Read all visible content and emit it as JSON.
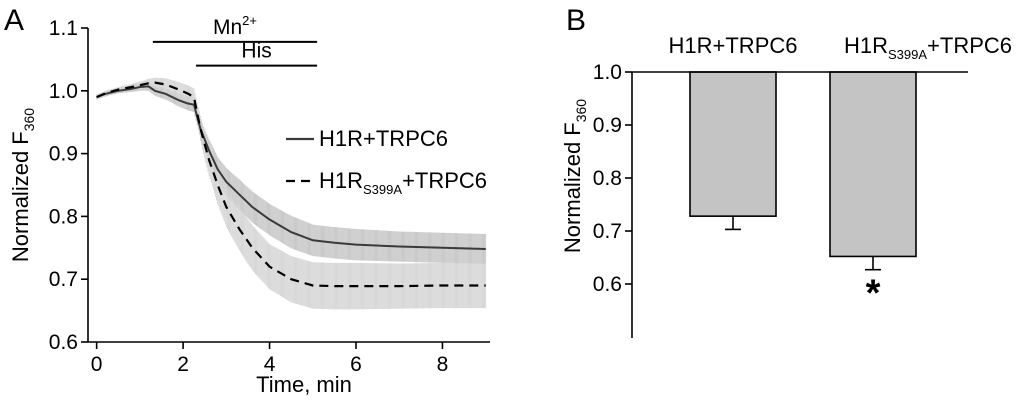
{
  "chart_data": [
    {
      "panel": "A",
      "type": "line",
      "xlabel": "Time, min",
      "ylabel": {
        "text": "Normalized F",
        "subscript": "360"
      },
      "xlim": [
        -0.2,
        9.1
      ],
      "ylim": [
        0.6,
        1.1
      ],
      "x_ticks": [
        0,
        2,
        4,
        6,
        8
      ],
      "y_ticks": [
        0.6,
        0.7,
        0.8,
        0.9,
        1.0,
        1.1
      ],
      "y_tick_labels": [
        "0.6",
        "0.7",
        "0.8",
        "0.9",
        "1.0",
        "1.1"
      ],
      "stimuli": [
        {
          "label": "Mn",
          "superscript": "2+",
          "x_start": 1.3,
          "x_end": 5.1,
          "y": 1.078
        },
        {
          "label": "His",
          "superscript": "",
          "x_start": 2.3,
          "x_end": 5.1,
          "y": 1.04
        }
      ],
      "series": [
        {
          "name": "H1R+TRPC6",
          "name_parts": {
            "main": "H1R",
            "sub": "",
            "rest": "+TRPC6"
          },
          "line_style": "solid",
          "color": "#3a3a3a",
          "x": [
            0,
            0.2,
            0.5,
            0.8,
            1.0,
            1.2,
            1.35,
            1.6,
            1.9,
            2.1,
            2.25,
            2.4,
            2.6,
            2.8,
            3.0,
            3.3,
            3.6,
            4.0,
            4.5,
            5.0,
            5.5,
            6.0,
            7.0,
            8.0,
            9.0
          ],
          "y": [
            0.99,
            0.995,
            1.0,
            1.003,
            1.006,
            1.007,
            1.0,
            0.995,
            0.985,
            0.98,
            0.978,
            0.94,
            0.905,
            0.875,
            0.855,
            0.835,
            0.815,
            0.795,
            0.775,
            0.762,
            0.758,
            0.755,
            0.752,
            0.75,
            0.748
          ],
          "err": [
            0.004,
            0.004,
            0.004,
            0.005,
            0.006,
            0.007,
            0.008,
            0.009,
            0.01,
            0.011,
            0.012,
            0.015,
            0.018,
            0.02,
            0.022,
            0.024,
            0.025,
            0.025,
            0.026,
            0.025,
            0.025,
            0.025,
            0.024,
            0.024,
            0.024
          ]
        },
        {
          "name": "H1RS399A+TRPC6",
          "name_parts": {
            "main": "H1R",
            "sub": "S399A",
            "rest": "+TRPC6"
          },
          "line_style": "dashed",
          "color": "#000000",
          "x": [
            0,
            0.2,
            0.5,
            0.8,
            1.0,
            1.2,
            1.35,
            1.6,
            1.9,
            2.1,
            2.25,
            2.4,
            2.6,
            2.8,
            3.0,
            3.3,
            3.6,
            4.0,
            4.5,
            5.0,
            5.5,
            6.0,
            7.0,
            8.0,
            9.0
          ],
          "y": [
            0.99,
            0.996,
            1.002,
            1.006,
            1.009,
            1.012,
            1.013,
            1.01,
            1.002,
            0.996,
            0.99,
            0.94,
            0.89,
            0.85,
            0.815,
            0.78,
            0.75,
            0.72,
            0.7,
            0.69,
            0.689,
            0.689,
            0.689,
            0.69,
            0.69
          ],
          "err": [
            0.004,
            0.004,
            0.004,
            0.005,
            0.006,
            0.007,
            0.008,
            0.01,
            0.012,
            0.013,
            0.014,
            0.02,
            0.026,
            0.03,
            0.032,
            0.034,
            0.036,
            0.036,
            0.037,
            0.037,
            0.037,
            0.037,
            0.036,
            0.036,
            0.036
          ]
        }
      ],
      "legend_placement": "right"
    },
    {
      "panel": "B",
      "type": "bar",
      "ylabel": {
        "text": "Normalized F",
        "subscript": "360"
      },
      "ylim": [
        0.5,
        1.0
      ],
      "y_ticks": [
        0.6,
        0.7,
        0.8,
        0.9,
        1.0
      ],
      "y_tick_labels": [
        "0.6",
        "0.7",
        "0.8",
        "0.9",
        "1.0"
      ],
      "baseline": 1.0,
      "categories": [
        "H1R+TRPC6",
        "H1RS399A+TRPC6"
      ],
      "category_parts": [
        {
          "main": "H1R",
          "sub": "",
          "rest": "+TRPC6"
        },
        {
          "main": "H1R",
          "sub": "S399A",
          "rest": "+TRPC6"
        }
      ],
      "values": [
        0.728,
        0.652
      ],
      "errors": [
        0.025,
        0.025
      ],
      "significance": [
        "",
        "*"
      ],
      "bar_color": "#c4c4c4"
    }
  ]
}
